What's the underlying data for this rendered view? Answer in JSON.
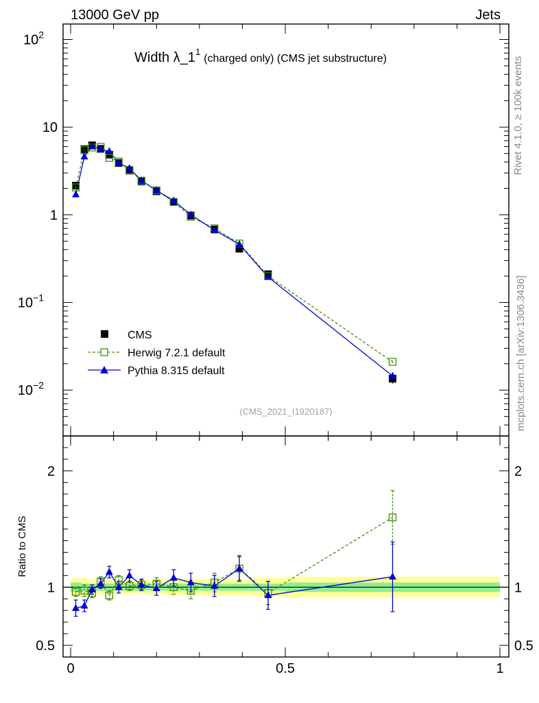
{
  "header": {
    "energy_label": "13000 GeV pp",
    "category_label": "Jets"
  },
  "side_labels": {
    "rivet": "Rivet 4.1.0, ≥ 100k events",
    "mcplots": "mcplots.cern.ch [arXiv:1306.3436]"
  },
  "chart_data": {
    "type": "line",
    "title_main": "Width λ_1",
    "title_sup": "1",
    "title_sub": "(charged only) (CMS jet substructure)",
    "analysis_id": "(CMS_2021_I1920187)",
    "ylabel_main": "",
    "ylabel_ratio": "Ratio to CMS",
    "xlim": [
      0,
      1
    ],
    "ylim_main_log": [
      0.003,
      150
    ],
    "ylim_ratio": [
      0.4,
      2.3
    ],
    "x_tick_labels": [
      "0",
      "0.5",
      "1"
    ],
    "x_tick_values": [
      0,
      0.5,
      1
    ],
    "y_main_tick_values": [
      0.01,
      0.1,
      1,
      10,
      100
    ],
    "y_main_tick_labels": [
      {
        "base": "10",
        "exp": "−2"
      },
      {
        "base": "10",
        "exp": "−1"
      },
      {
        "base": "1",
        "exp": ""
      },
      {
        "base": "10",
        "exp": ""
      },
      {
        "base": "10",
        "exp": "2"
      }
    ],
    "y_ratio_tick_values": [
      0.5,
      1,
      2
    ],
    "y_ratio_tick_labels": [
      "0.5",
      "1",
      "2"
    ],
    "legend": {
      "position": "bottom-left",
      "entries": [
        "CMS",
        "Herwig 7.2.1 default",
        "Pythia 8.315 default"
      ]
    },
    "colors": {
      "data": "#000000",
      "herwig": "#3c8d0c",
      "pythia": "#0000d0",
      "band_inner": "#90ee90",
      "band_outer": "#ffff99"
    },
    "bins": [
      {
        "lo": 0.0,
        "hi": 0.025
      },
      {
        "lo": 0.025,
        "hi": 0.04
      },
      {
        "lo": 0.04,
        "hi": 0.06
      },
      {
        "lo": 0.06,
        "hi": 0.08
      },
      {
        "lo": 0.08,
        "hi": 0.1
      },
      {
        "lo": 0.1,
        "hi": 0.125
      },
      {
        "lo": 0.125,
        "hi": 0.15
      },
      {
        "lo": 0.15,
        "hi": 0.18
      },
      {
        "lo": 0.18,
        "hi": 0.22
      },
      {
        "lo": 0.22,
        "hi": 0.26
      },
      {
        "lo": 0.26,
        "hi": 0.3
      },
      {
        "lo": 0.3,
        "hi": 0.37
      },
      {
        "lo": 0.37,
        "hi": 0.42
      },
      {
        "lo": 0.42,
        "hi": 0.5
      },
      {
        "lo": 0.5,
        "hi": 1.0
      }
    ],
    "x": [
      0.012,
      0.032,
      0.05,
      0.07,
      0.09,
      0.112,
      0.137,
      0.165,
      0.2,
      0.24,
      0.28,
      0.335,
      0.393,
      0.46,
      0.75
    ],
    "series": [
      {
        "name": "CMS",
        "values": [
          2.15,
          5.6,
          6.2,
          5.65,
          4.85,
          3.9,
          3.2,
          2.4,
          1.85,
          1.4,
          0.98,
          0.68,
          0.41,
          0.21,
          0.0135
        ],
        "band_inner": [
          0.04,
          0.03,
          0.03,
          0.03,
          0.03,
          0.03,
          0.03,
          0.03,
          0.03,
          0.03,
          0.03,
          0.03,
          0.03,
          0.03,
          0.04
        ],
        "band_outer": [
          0.08,
          0.08,
          0.07,
          0.06,
          0.06,
          0.06,
          0.06,
          0.06,
          0.06,
          0.07,
          0.07,
          0.07,
          0.07,
          0.08,
          0.09
        ]
      },
      {
        "name": "Herwig 7.2.1 default",
        "values": [
          2.05,
          5.45,
          5.85,
          5.95,
          4.45,
          4.05,
          3.25,
          2.45,
          1.9,
          1.4,
          0.95,
          0.7,
          0.47,
          0.2,
          0.021
        ],
        "ratio": [
          0.96,
          0.97,
          0.95,
          1.05,
          0.93,
          1.06,
          1.01,
          1.02,
          1.03,
          1.0,
          0.97,
          1.04,
          1.16,
          0.95,
          1.6
        ],
        "ratio_err": [
          0.04,
          0.05,
          0.04,
          0.04,
          0.04,
          0.04,
          0.04,
          0.04,
          0.05,
          0.06,
          0.07,
          0.08,
          0.1,
          0.1,
          0.23
        ]
      },
      {
        "name": "Pythia 8.315 default",
        "values": [
          1.7,
          4.6,
          6.0,
          5.6,
          5.3,
          3.9,
          3.4,
          2.45,
          1.9,
          1.45,
          1.0,
          0.67,
          0.46,
          0.195,
          0.0145
        ],
        "ratio": [
          0.82,
          0.84,
          0.98,
          1.03,
          1.13,
          1.0,
          1.1,
          1.02,
          0.99,
          1.08,
          1.04,
          1.01,
          1.16,
          0.93,
          1.09
        ],
        "ratio_err": [
          0.07,
          0.05,
          0.04,
          0.04,
          0.05,
          0.05,
          0.05,
          0.05,
          0.06,
          0.07,
          0.08,
          0.09,
          0.11,
          0.12,
          0.3
        ]
      }
    ]
  }
}
